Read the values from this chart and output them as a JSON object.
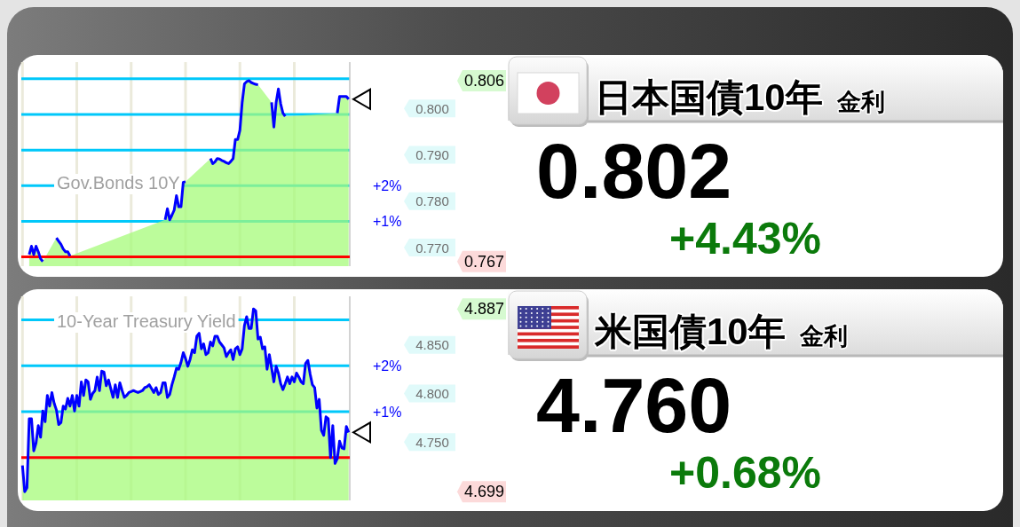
{
  "chart_data": [
    {
      "type": "area",
      "title": "Gov.Bonds 10Y",
      "categories": [
        null,
        null,
        null,
        null,
        null,
        null,
        null,
        null,
        null,
        null,
        null,
        null,
        null,
        null,
        null,
        null,
        null,
        null,
        null,
        null,
        null,
        null,
        null,
        null,
        null,
        null,
        null,
        null,
        null,
        null,
        null,
        null,
        null,
        null,
        null,
        null,
        null,
        null,
        null,
        null,
        null,
        null,
        null,
        null,
        null,
        null,
        null,
        null,
        null,
        null,
        null,
        null,
        null,
        null,
        null,
        null,
        null,
        null,
        null,
        null,
        null,
        null,
        null,
        null,
        null,
        null,
        null,
        null,
        null,
        null,
        null,
        null,
        null,
        null,
        null,
        null,
        null,
        null,
        null,
        null,
        null,
        null,
        null,
        null,
        null,
        null,
        null,
        null,
        null,
        null,
        null,
        null,
        null,
        null,
        null,
        null,
        null,
        null,
        null,
        null,
        null,
        null,
        null,
        null,
        null,
        null,
        null,
        null,
        null,
        null,
        null,
        null,
        null,
        null,
        null,
        null,
        null,
        null,
        null,
        null,
        null,
        null,
        null,
        null,
        null,
        null,
        null,
        null,
        null,
        null,
        null,
        null,
        null,
        null,
        null,
        null,
        null,
        null,
        null,
        null,
        null,
        null,
        null,
        null,
        null
      ],
      "series": [
        {
          "type": "area",
          "color": "#a6fb7a",
          "axis": "y2",
          "values": [
            null,
            null,
            null,
            0.7685,
            0.7703,
            0.7685,
            0.7703,
            0.7691,
            0.7676,
            0.767,
            null,
            null,
            null,
            null,
            null,
            0.7721,
            0.7714,
            0.7707,
            0.7697,
            0.7691,
            0.7691,
            0.7682,
            null,
            null,
            null,
            null,
            null,
            null,
            null,
            null,
            null,
            null,
            null,
            null,
            null,
            null,
            null,
            null,
            null,
            null,
            null,
            null,
            null,
            null,
            null,
            null,
            null,
            null,
            null,
            null,
            null,
            null,
            null,
            null,
            null,
            null,
            null,
            null,
            null,
            null,
            null,
            null,
            null,
            0.776,
            0.7784,
            0.776,
            0.777,
            0.7781,
            0.7812,
            0.7788,
            0.7788,
            0.7841,
            0.7842,
            null,
            null,
            null,
            null,
            null,
            null,
            null,
            null,
            null,
            null,
            0.7892,
            0.7881,
            0.7885,
            0.7892,
            0.7891,
            0.7888,
            0.7886,
            0.7883,
            0.7881,
            0.7886,
            0.7892,
            0.7933,
            0.7933,
            0.7953,
            0.8013,
            0.8053,
            0.8058,
            0.806,
            0.8056,
            0.8054,
            0.8052,
            0.8051,
            null,
            null,
            null,
            null,
            null,
            0.8013,
            0.796,
            0.8013,
            0.8042,
            0.801,
            0.799,
            0.7983,
            null,
            null,
            null,
            null,
            null,
            null,
            null,
            null,
            null,
            null,
            null,
            null,
            null,
            null,
            null,
            null,
            null,
            null,
            null,
            null,
            null,
            null,
            0.799,
            0.8026,
            0.8026,
            0.8026,
            0.8026,
            0.802
          ]
        },
        {
          "type": "line",
          "color": "#0000ff",
          "axis": "y2",
          "values": [
            null,
            null,
            null,
            0.7685,
            0.7703,
            0.7685,
            0.7703,
            0.7691,
            0.7676,
            0.767,
            null,
            null,
            null,
            null,
            null,
            0.7721,
            0.7714,
            0.7707,
            0.7697,
            0.7691,
            0.7691,
            0.7682,
            null,
            null,
            null,
            null,
            null,
            null,
            null,
            null,
            null,
            null,
            null,
            null,
            null,
            null,
            null,
            null,
            null,
            null,
            null,
            null,
            null,
            null,
            null,
            null,
            null,
            null,
            null,
            null,
            null,
            null,
            null,
            null,
            null,
            null,
            null,
            null,
            null,
            null,
            null,
            null,
            null,
            0.776,
            0.7784,
            0.776,
            0.777,
            0.7781,
            0.7812,
            0.7788,
            0.7788,
            0.7841,
            0.7842,
            null,
            null,
            null,
            null,
            null,
            null,
            null,
            null,
            null,
            null,
            0.7892,
            0.7881,
            0.7885,
            0.7892,
            0.7891,
            0.7888,
            0.7886,
            0.7883,
            0.7881,
            0.7886,
            0.7892,
            0.7933,
            0.7933,
            0.7953,
            0.8013,
            0.8053,
            0.8058,
            0.806,
            0.8056,
            0.8054,
            0.8052,
            0.8051,
            null,
            null,
            null,
            null,
            null,
            0.8013,
            0.796,
            0.8013,
            0.8042,
            0.801,
            0.799,
            0.7983,
            null,
            null,
            null,
            null,
            null,
            null,
            null,
            null,
            null,
            null,
            null,
            null,
            null,
            null,
            null,
            null,
            null,
            null,
            null,
            null,
            null,
            null,
            0.799,
            0.8026,
            0.8026,
            0.8026,
            0.8026,
            0.802
          ]
        }
      ],
      "ylim": [
        -0.26,
        5.47
      ],
      "yticks": [
        {
          "value": 1,
          "label": "+1%"
        },
        {
          "value": 2,
          "label": "+2%"
        },
        {
          "value": 3,
          "label": null
        },
        {
          "value": 4,
          "label": null
        },
        {
          "value": 5,
          "label": null
        }
      ],
      "y2lim": [
        0.766,
        0.81
      ],
      "y2ticks": [
        {
          "value": 0.77,
          "label": "0.770"
        },
        {
          "value": 0.78,
          "label": "0.780"
        },
        {
          "value": 0.79,
          "label": "0.790"
        },
        {
          "value": 0.8,
          "label": "0.800"
        }
      ],
      "ref_lines": [
        {
          "axis": "y",
          "value": 0,
          "color": "#ff0000"
        }
      ],
      "annotations": [
        "0.806",
        "0.767"
      ],
      "grid": true
    },
    {
      "type": "other",
      "title": "日本国債10年",
      "subtitle": "金利",
      "annotations": [
        "0.802",
        "+4.43%"
      ]
    },
    {
      "type": "area",
      "title": "10-Year Treasury Yield",
      "categories": [
        null,
        null,
        null,
        null,
        null,
        null,
        null,
        null,
        null,
        null,
        null,
        null,
        null,
        null,
        null,
        null,
        null,
        null,
        null,
        null,
        null,
        null,
        null,
        null,
        null,
        null,
        null,
        null,
        null,
        null,
        null,
        null,
        null,
        null,
        null,
        null,
        null,
        null,
        null,
        null,
        null,
        null,
        null,
        null,
        null,
        null,
        null,
        null,
        null,
        null,
        null,
        null,
        null,
        null,
        null,
        null,
        null,
        null,
        null,
        null,
        null,
        null,
        null,
        null,
        null,
        null,
        null,
        null,
        null,
        null,
        null,
        null,
        null,
        null,
        null,
        null,
        null,
        null,
        null,
        null,
        null,
        null,
        null,
        null,
        null,
        null,
        null,
        null,
        null,
        null,
        null,
        null,
        null,
        null,
        null,
        null,
        null,
        null,
        null,
        null,
        null,
        null,
        null,
        null,
        null,
        null,
        null,
        null,
        null,
        null,
        null,
        null,
        null,
        null,
        null,
        null,
        null,
        null,
        null,
        null,
        null,
        null,
        null,
        null,
        null,
        null,
        null,
        null,
        null,
        null,
        null,
        null,
        null,
        null,
        null,
        null,
        null,
        null,
        null,
        null,
        null,
        null,
        null,
        null,
        null
      ],
      "series": [
        {
          "type": "area",
          "color": "#a6fb7a",
          "axis": "y2",
          "values": [
            4.726,
            4.699,
            4.703,
            4.774,
            4.774,
            4.741,
            4.749,
            4.767,
            4.755,
            4.782,
            4.771,
            4.798,
            4.787,
            4.801,
            4.79,
            4.783,
            4.768,
            4.77,
            4.787,
            4.784,
            4.795,
            4.787,
            4.798,
            4.782,
            4.798,
            4.787,
            4.812,
            4.798,
            4.814,
            4.812,
            4.794,
            4.8,
            4.803,
            4.817,
            4.803,
            4.823,
            4.822,
            4.808,
            4.814,
            4.805,
            4.796,
            4.809,
            4.796,
            4.811,
            4.803,
            4.796,
            4.798,
            4.801,
            4.802,
            4.803,
            4.802,
            4.801,
            4.802,
            4.803,
            4.806,
            4.807,
            4.809,
            4.805,
            4.801,
            4.806,
            4.799,
            4.801,
            4.811,
            4.811,
            4.796,
            4.799,
            4.809,
            4.817,
            4.826,
            4.825,
            4.832,
            4.842,
            4.836,
            4.828,
            4.835,
            4.845,
            4.842,
            4.859,
            4.862,
            4.846,
            4.851,
            4.84,
            4.842,
            4.853,
            4.849,
            4.859,
            4.859,
            4.853,
            4.85,
            4.847,
            4.838,
            4.842,
            4.845,
            4.835,
            4.846,
            4.848,
            4.84,
            4.846,
            4.87,
            4.879,
            4.867,
            4.867,
            4.887,
            4.885,
            4.856,
            4.858,
            4.846,
            4.848,
            4.825,
            4.84,
            4.826,
            4.812,
            4.828,
            4.821,
            4.81,
            4.804,
            4.81,
            4.817,
            4.81,
            4.817,
            4.812,
            4.821,
            4.817,
            4.812,
            4.81,
            4.831,
            4.834,
            4.82,
            4.809,
            4.806,
            4.785,
            4.794,
            4.762,
            4.757,
            4.776,
            4.774,
            4.734,
            4.767,
            4.728,
            4.733,
            4.751,
            4.744,
            4.743,
            4.766,
            4.76
          ]
        },
        {
          "type": "line",
          "color": "#0000ff",
          "axis": "y2",
          "values": [
            4.726,
            4.699,
            4.703,
            4.774,
            4.774,
            4.741,
            4.749,
            4.767,
            4.755,
            4.782,
            4.771,
            4.798,
            4.787,
            4.801,
            4.79,
            4.783,
            4.768,
            4.77,
            4.787,
            4.784,
            4.795,
            4.787,
            4.798,
            4.782,
            4.798,
            4.787,
            4.812,
            4.798,
            4.814,
            4.812,
            4.794,
            4.8,
            4.803,
            4.817,
            4.803,
            4.823,
            4.822,
            4.808,
            4.814,
            4.805,
            4.796,
            4.809,
            4.796,
            4.811,
            4.803,
            4.796,
            4.798,
            4.801,
            4.802,
            4.803,
            4.802,
            4.801,
            4.802,
            4.803,
            4.806,
            4.807,
            4.809,
            4.805,
            4.801,
            4.806,
            4.799,
            4.801,
            4.811,
            4.811,
            4.796,
            4.799,
            4.809,
            4.817,
            4.826,
            4.825,
            4.832,
            4.842,
            4.836,
            4.828,
            4.835,
            4.845,
            4.842,
            4.859,
            4.862,
            4.846,
            4.851,
            4.84,
            4.842,
            4.853,
            4.849,
            4.859,
            4.859,
            4.853,
            4.85,
            4.847,
            4.838,
            4.842,
            4.845,
            4.835,
            4.846,
            4.848,
            4.84,
            4.846,
            4.87,
            4.879,
            4.867,
            4.867,
            4.887,
            4.885,
            4.856,
            4.858,
            4.846,
            4.848,
            4.825,
            4.84,
            4.826,
            4.812,
            4.828,
            4.821,
            4.81,
            4.804,
            4.81,
            4.817,
            4.81,
            4.817,
            4.812,
            4.821,
            4.817,
            4.812,
            4.81,
            4.831,
            4.834,
            4.82,
            4.809,
            4.806,
            4.785,
            4.794,
            4.762,
            4.757,
            4.776,
            4.774,
            4.734,
            4.767,
            4.728,
            4.733,
            4.751,
            4.744,
            4.743,
            4.766,
            4.76
          ]
        }
      ],
      "ylim": [
        -0.93,
        3.51
      ],
      "yticks": [
        {
          "value": 1,
          "label": "+1%"
        },
        {
          "value": 2,
          "label": "+2%"
        },
        {
          "value": 3,
          "label": null
        }
      ],
      "y2lim": [
        4.69,
        4.9
      ],
      "y2ticks": [
        {
          "value": 4.75,
          "label": "4.750"
        },
        {
          "value": 4.8,
          "label": "4.800"
        },
        {
          "value": 4.85,
          "label": "4.850"
        }
      ],
      "ref_lines": [
        {
          "axis": "y",
          "value": 0,
          "color": "#ff0000"
        }
      ],
      "annotations": [
        "4.887",
        "4.699"
      ],
      "grid": true
    },
    {
      "type": "other",
      "title": "米国債10年",
      "subtitle": "金利",
      "annotations": [
        "4.760",
        "+0.68%"
      ]
    }
  ]
}
